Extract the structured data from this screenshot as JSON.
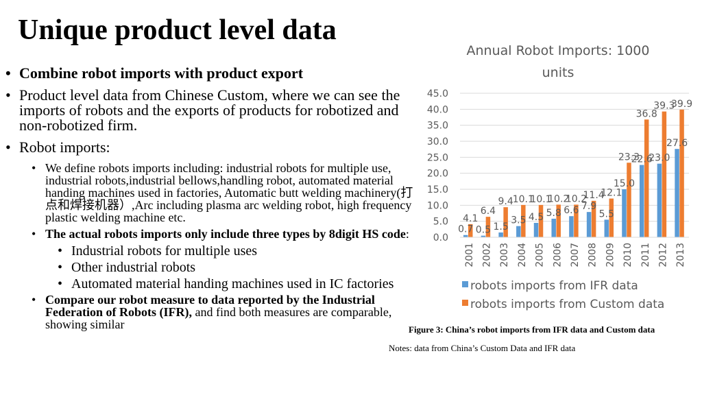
{
  "slide": {
    "title": "Unique product level data",
    "bullets": {
      "b1": "Combine robot imports with product export",
      "b2": "Product level data from Chinese Custom, where we can see the imports of robots and the exports of products for robotized and non-robotized firm.",
      "b3": "Robot imports:",
      "b3_sub1": "We define robots imports including: industrial robots for multiple use, industrial robots,industrial bellows,handling robot, automated material handing machines used in factories, Automatic butt welding machinery(打点和焊接机器）,Arc including plasma arc welding robot, high frequency plastic welding machine etc.",
      "b3_sub2_bold": "The actual robots imports only include three types by 8digit HS code",
      "b3_sub2_tail": ":",
      "hs1": "Industrial robots for multiple uses",
      "hs2": "Other industrial robots",
      "hs3": "Automated material handing machines used in IC factories",
      "b3_sub3_bold": "Compare our robot measure to data reported by the Industrial Federation of Robots (IFR),",
      "b3_sub3_tail": " and find both measures are comparable, showing similar"
    },
    "caption": "Figure 3: China’s robot imports from IFR data and Custom data",
    "notes": "Notes: data from China’s Custom Data and IFR data"
  },
  "chart_data": {
    "type": "bar",
    "title": "Annual Robot Imports: 1000 units",
    "categories": [
      "2001",
      "2002",
      "2003",
      "2004",
      "2005",
      "2006",
      "2007",
      "2008",
      "2009",
      "2010",
      "2011",
      "2012",
      "2013"
    ],
    "series": [
      {
        "name": "robots imports from IFR data",
        "color": "#5B9BD5",
        "values": [
          0.7,
          0.5,
          1.5,
          3.5,
          4.5,
          5.8,
          6.6,
          7.9,
          5.5,
          15.0,
          22.6,
          23.0,
          27.6
        ]
      },
      {
        "name": "robots imports from Custom data",
        "color": "#ED7D31",
        "values": [
          4.1,
          6.4,
          9.4,
          10.1,
          10.1,
          10.2,
          10.2,
          11.4,
          12.1,
          23.3,
          36.8,
          39.3,
          39.9
        ]
      }
    ],
    "ylim": [
      0,
      45
    ],
    "yticks": [
      "0.0",
      "5.0",
      "10.0",
      "15.0",
      "20.0",
      "25.0",
      "30.0",
      "35.0",
      "40.0",
      "45.0"
    ],
    "grid": true,
    "legend": "bottom",
    "label_color": "#595959"
  }
}
